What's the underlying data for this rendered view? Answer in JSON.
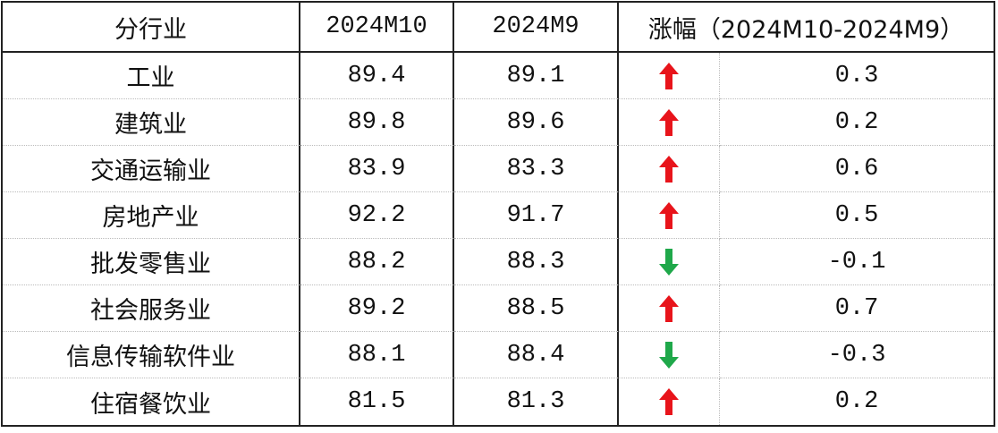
{
  "table": {
    "header": [
      "分行业",
      "2024M10",
      "2024M9",
      "涨幅（2024M10-2024M9）"
    ],
    "rows": [
      [
        "工业",
        89.4,
        89.1,
        0.3
      ],
      [
        "建筑业",
        89.8,
        89.6,
        0.2
      ],
      [
        "交通运输业",
        83.9,
        83.3,
        0.6
      ],
      [
        "房地产业",
        92.2,
        91.7,
        0.5
      ],
      [
        "批发零售业",
        88.2,
        88.3,
        -0.1
      ],
      [
        "社会服务业",
        89.2,
        88.5,
        0.7
      ],
      [
        "信息传输软件业",
        88.1,
        88.4,
        -0.3
      ],
      [
        "住宿餐饮业",
        81.5,
        81.3,
        0.2
      ]
    ]
  }
}
